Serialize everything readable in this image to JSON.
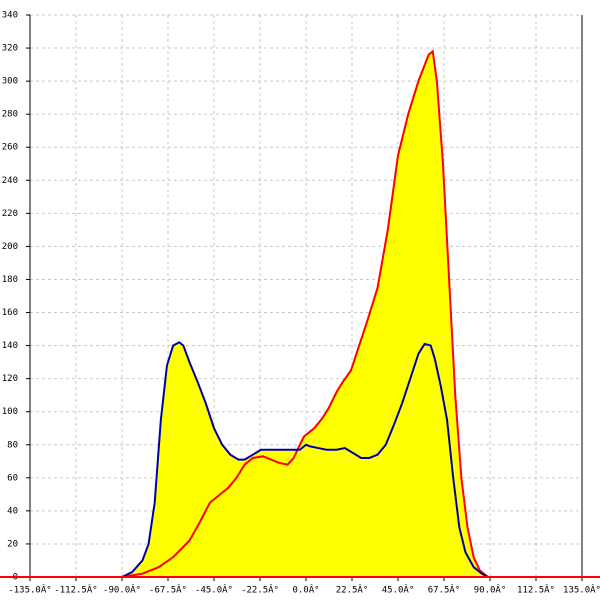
{
  "chart_data": {
    "type": "area",
    "ylim": [
      0,
      340
    ],
    "yticks": [
      0,
      20,
      40,
      60,
      80,
      100,
      120,
      140,
      160,
      180,
      200,
      220,
      240,
      260,
      280,
      300,
      320,
      340
    ],
    "xlim": [
      -135,
      135
    ],
    "xticks": [
      {
        "value": -135,
        "label": "-135.0Â°"
      },
      {
        "value": -112.5,
        "label": "-112.5Â°"
      },
      {
        "value": -90,
        "label": "-90.0Â°"
      },
      {
        "value": -67.5,
        "label": "-67.5Â°"
      },
      {
        "value": -45,
        "label": "-45.0Â°"
      },
      {
        "value": -22.5,
        "label": "-22.5Â°"
      },
      {
        "value": 0,
        "label": "0.0Â°"
      },
      {
        "value": 22.5,
        "label": "22.5Â°"
      },
      {
        "value": 45,
        "label": "45.0Â°"
      },
      {
        "value": 67.5,
        "label": "67.5Â°"
      },
      {
        "value": 90,
        "label": "90.0Â°"
      },
      {
        "value": 112.5,
        "label": "112.5Â°"
      },
      {
        "value": 135,
        "label": "135.0Â°"
      }
    ],
    "grid": true,
    "series": [
      {
        "color": "#ff0000",
        "fill": "#ffff00",
        "x": [
          -90,
          -80,
          -72,
          -65,
          -57,
          -52,
          -47,
          -42,
          -38,
          -34,
          -30,
          -26,
          -21,
          -17,
          -13,
          -9,
          -6,
          -3,
          -1,
          2,
          4,
          8,
          11,
          15,
          18,
          22,
          26,
          30,
          35,
          40,
          45,
          50,
          55,
          60,
          62,
          64,
          67,
          70,
          73,
          76,
          79,
          82,
          85,
          89
        ],
        "values": [
          0,
          2,
          6,
          12,
          22,
          33,
          45,
          50,
          54,
          60,
          68,
          72,
          73,
          71,
          69,
          68,
          72,
          80,
          85,
          88,
          90,
          96,
          102,
          112,
          118,
          125,
          140,
          155,
          175,
          210,
          255,
          280,
          300,
          316,
          318,
          300,
          250,
          180,
          110,
          60,
          30,
          12,
          4,
          0
        ]
      },
      {
        "color": "#0000aa",
        "fill": "#ffff00",
        "x": [
          -90,
          -85,
          -80,
          -77,
          -74,
          -71,
          -68,
          -65,
          -62,
          -60,
          -57,
          -53,
          -49,
          -45,
          -41,
          -37,
          -33,
          -30,
          -26,
          -22,
          -18,
          -14,
          -10,
          -6,
          -3,
          0,
          2,
          6,
          10,
          15,
          19,
          23,
          27,
          31,
          35,
          39,
          43,
          47,
          51,
          55,
          58,
          61,
          63,
          66,
          69,
          72,
          75,
          78,
          82,
          86,
          89
        ],
        "values": [
          0,
          3,
          10,
          20,
          45,
          95,
          128,
          140,
          142,
          140,
          130,
          118,
          105,
          90,
          80,
          74,
          71,
          71,
          74,
          77,
          77,
          77,
          77,
          77,
          77,
          80,
          79,
          78,
          77,
          77,
          78,
          75,
          72,
          72,
          74,
          80,
          92,
          105,
          120,
          135,
          141,
          140,
          132,
          115,
          95,
          60,
          30,
          15,
          6,
          2,
          0
        ]
      }
    ]
  }
}
